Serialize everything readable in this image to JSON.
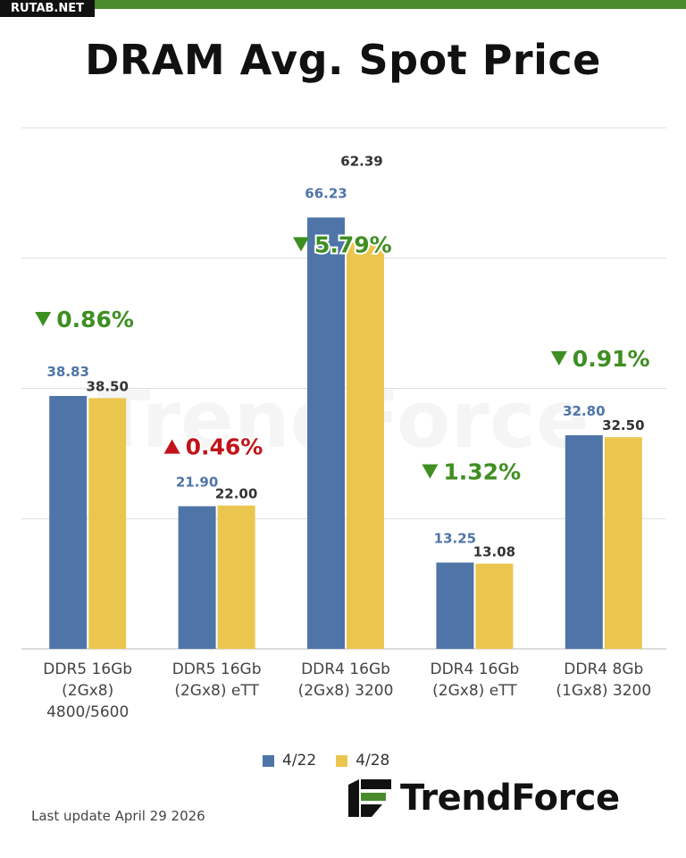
{
  "watermark_tag": "RUTAB.NET",
  "footer": {
    "last_update": "Last update  April 29  2026",
    "logo_text": "TrendForce"
  },
  "colors": {
    "series_1": "#4f75a8",
    "series_2": "#ebc64e",
    "up": "#c0141a",
    "down": "#3f8e22",
    "grid": "#dddddd",
    "top_bar": "#4a8a2c"
  },
  "chart_data": {
    "type": "bar",
    "title": "DRAM Avg. Spot Price",
    "categories": [
      [
        "DDR5 16Gb",
        "(2Gx8)",
        "4800/5600"
      ],
      [
        "DDR5 16Gb",
        "(2Gx8) eTT"
      ],
      [
        "DDR4 16Gb",
        "(2Gx8) 3200"
      ],
      [
        "DDR4 16Gb",
        "(2Gx8) eTT"
      ],
      [
        "DDR4 8Gb",
        "(1Gx8) 3200"
      ]
    ],
    "series": [
      {
        "name": "4/22",
        "values": [
          38.83,
          21.9,
          66.23,
          13.25,
          32.8
        ],
        "labels": [
          "38.83",
          "21.90",
          "66.23",
          "13.25",
          "32.80"
        ]
      },
      {
        "name": "4/28",
        "values": [
          38.5,
          22.0,
          62.39,
          13.08,
          32.5
        ],
        "labels": [
          "38.50",
          "22.00",
          "62.39",
          "13.08",
          "32.50"
        ]
      }
    ],
    "changes": [
      {
        "direction": "down",
        "text": "0.86%"
      },
      {
        "direction": "up",
        "text": "0.46%"
      },
      {
        "direction": "down",
        "text": "5.79%"
      },
      {
        "direction": "down",
        "text": "1.32%"
      },
      {
        "direction": "down",
        "text": "0.91%"
      }
    ],
    "ylim": [
      0,
      80
    ],
    "grid": true,
    "legend_position": "bottom"
  }
}
